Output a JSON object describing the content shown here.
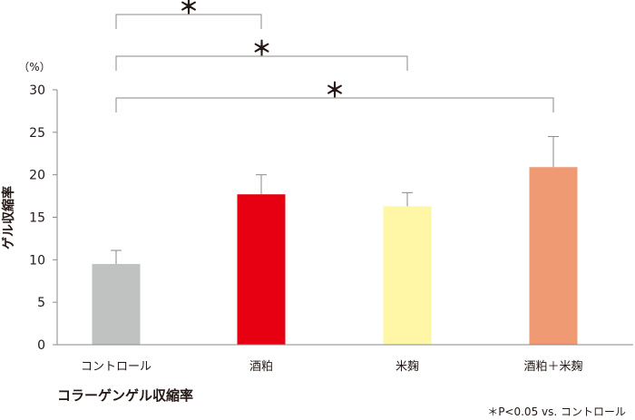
{
  "chart_data": {
    "type": "bar",
    "title": "コラーゲンゲル収縮率",
    "ylabel": "ゲル収縮率",
    "unit": "（%）",
    "xlabel": "",
    "categories": [
      "コントロール",
      "酒粕",
      "米麹",
      "酒粕＋米麹"
    ],
    "values": [
      9.5,
      17.7,
      16.3,
      20.9
    ],
    "errors": [
      1.6,
      2.3,
      1.6,
      3.6
    ],
    "colors": [
      "#c0c1c1",
      "#e60012",
      "#fff6a6",
      "#f09a74"
    ],
    "ylim": [
      0,
      30
    ],
    "yticks": [
      "0",
      "5",
      "10",
      "15",
      "20",
      "25",
      "30"
    ],
    "significance": [
      {
        "from": 0,
        "to": 1,
        "label": "＊"
      },
      {
        "from": 0,
        "to": 2,
        "label": "＊"
      },
      {
        "from": 0,
        "to": 3,
        "label": "＊"
      }
    ],
    "footnote": "＊P<0.05 vs. コントロール",
    "grid": false,
    "legend": "none"
  }
}
